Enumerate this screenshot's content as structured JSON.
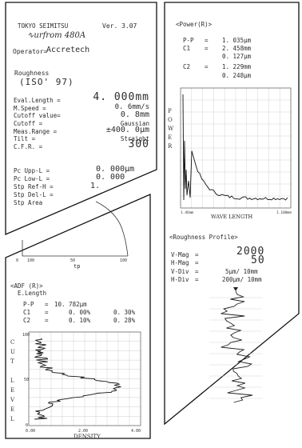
{
  "panel1": {
    "company": "TOKYO SEIMITSU",
    "version": "Ver. 3.07",
    "model": "∿urfrom 480A",
    "operator_label": "Operator=",
    "operator_value": "Accretech",
    "roughness_label": "Roughness",
    "standard": "(ISO' 97)",
    "params": [
      {
        "label": "Eval.Length =",
        "value": "4. 000mm"
      },
      {
        "label": "M.Speed     =",
        "value": "0. 6mm/s"
      },
      {
        "label": "Cutoff value=",
        "value": "0. 8mm"
      },
      {
        "label": "Cutoff      =",
        "value": "Gaussian"
      },
      {
        "label": "Meas.Range  =",
        "value": "±400. 0μm"
      },
      {
        "label": "Tilt        =",
        "value": "Straight"
      },
      {
        "label": "C.F.R.      =",
        "value": "300"
      }
    ],
    "pc_params": [
      {
        "label": "Pc Upp-L =",
        "value": "0. 000μm"
      },
      {
        "label": "Pc Low-L =",
        "value": "0. 000"
      },
      {
        "label": "Stp Ref-H =",
        "value": "1."
      },
      {
        "label": "Stp Del-L =",
        "value": ""
      },
      {
        "label": "Stp Area",
        "value": ""
      }
    ]
  },
  "panel2": {
    "tick_labels": [
      "0",
      "100",
      "50",
      "100"
    ],
    "axis_label": "tp",
    "adf_title": "<ADF (R)>",
    "e_length_label": "E.Length",
    "rows": [
      {
        "label": "P-P",
        "eq": "=",
        "v1": "10. 782μm",
        "v2": ""
      },
      {
        "label": "C1",
        "eq": "=",
        "v1": "0. 00%",
        "v2": "0. 30%"
      },
      {
        "label": "C2",
        "eq": "=",
        "v1": "0. 10%",
        "v2": "0. 28%"
      }
    ],
    "y_axis_letters": [
      "C",
      "U",
      "T",
      "",
      "L",
      "E",
      "V",
      "E",
      "L"
    ],
    "y_ticks": [
      "100",
      "50",
      "0"
    ],
    "x_ticks": [
      "0.00",
      "2.00",
      "4.00"
    ],
    "x_label": "DENSITY"
  },
  "panel3": {
    "power_title": "<Power(R)>",
    "rows": [
      {
        "label": "P-P",
        "eq": "=",
        "value": "1. 035μm"
      },
      {
        "label": "C1",
        "eq": "=",
        "value": "2. 458mm"
      },
      {
        "label": "",
        "eq": "",
        "value": "0. 127μm"
      },
      {
        "label": "C2",
        "eq": "=",
        "value": "1. 229mm"
      },
      {
        "label": "",
        "eq": "",
        "value": "0. 248μm"
      }
    ],
    "y_axis_letters": [
      "P",
      "O",
      "W",
      "E",
      "R"
    ],
    "x_tick_left": "1.46mm",
    "x_tick_right": "1.100mm",
    "x_label": "WAVE LENGTH",
    "profile_title": "<Roughness Profile>",
    "mag_rows": [
      {
        "label": "V-Mag",
        "eq": "=",
        "value": "2000"
      },
      {
        "label": "H-Mag",
        "eq": "=",
        "value": "50"
      },
      {
        "label": "V-Div",
        "eq": "=",
        "value": "5μm/ 10mm"
      },
      {
        "label": "H-Div",
        "eq": "=",
        "value": "200μm/ 10mm"
      }
    ]
  }
}
